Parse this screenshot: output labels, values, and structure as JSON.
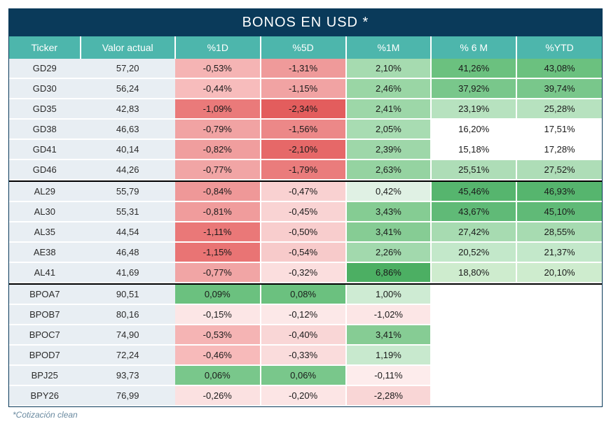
{
  "title": "BONOS EN USD *",
  "footnote": "*Cotización clean",
  "columns": [
    "Ticker",
    "Valor actual",
    "%1D",
    "%5D",
    "%1M",
    "% 6 M",
    "%YTD"
  ],
  "col_widths": [
    "12%",
    "16%",
    "14.4%",
    "14.4%",
    "14.4%",
    "14.4%",
    "14.4%"
  ],
  "header_bg": "#4db6ac",
  "header_text": "#ffffff",
  "title_bg": "#0a3a5a",
  "title_text": "#ffffff",
  "ticker_bg": "#e8eef3",
  "cell_text": "#1a1a1a",
  "font_size_title": 20,
  "font_size_header": 14,
  "font_size_cell": 13,
  "groups": [
    {
      "rows": [
        {
          "ticker": "GD29",
          "valor": "57,20",
          "pct": [
            {
              "v": "-0,53%",
              "bg": "#f5b4b4"
            },
            {
              "v": "-1,31%",
              "bg": "#ef9a9a"
            },
            {
              "v": "2,10%",
              "bg": "#a6dbb0"
            },
            {
              "v": "41,26%",
              "bg": "#6bc17f"
            },
            {
              "v": "43,08%",
              "bg": "#6bc17f"
            }
          ]
        },
        {
          "ticker": "GD30",
          "valor": "56,24",
          "pct": [
            {
              "v": "-0,44%",
              "bg": "#f7bcbc"
            },
            {
              "v": "-1,15%",
              "bg": "#f1a3a3"
            },
            {
              "v": "2,46%",
              "bg": "#9ad6a5"
            },
            {
              "v": "37,92%",
              "bg": "#79c78b"
            },
            {
              "v": "39,74%",
              "bg": "#79c78b"
            }
          ]
        },
        {
          "ticker": "GD35",
          "valor": "42,83",
          "pct": [
            {
              "v": "-1,09%",
              "bg": "#ea7a7a"
            },
            {
              "v": "-2,34%",
              "bg": "#e35d5d"
            },
            {
              "v": "2,41%",
              "bg": "#9dd7a8"
            },
            {
              "v": "23,19%",
              "bg": "#b7e2bf"
            },
            {
              "v": "25,28%",
              "bg": "#b7e2bf"
            }
          ]
        },
        {
          "ticker": "GD38",
          "valor": "46,63",
          "pct": [
            {
              "v": "-0,79%",
              "bg": "#f1a3a3"
            },
            {
              "v": "-1,56%",
              "bg": "#ec8888"
            },
            {
              "v": "2,05%",
              "bg": "#a8dcb2"
            },
            {
              "v": "16,20%",
              "bg": "#ffffff"
            },
            {
              "v": "17,51%",
              "bg": "#ffffff"
            }
          ]
        },
        {
          "ticker": "GD41",
          "valor": "40,14",
          "pct": [
            {
              "v": "-0,82%",
              "bg": "#f09e9e"
            },
            {
              "v": "-2,10%",
              "bg": "#e66868"
            },
            {
              "v": "2,39%",
              "bg": "#9ed7a9"
            },
            {
              "v": "15,18%",
              "bg": "#ffffff"
            },
            {
              "v": "17,28%",
              "bg": "#ffffff"
            }
          ]
        },
        {
          "ticker": "GD46",
          "valor": "44,26",
          "pct": [
            {
              "v": "-0,77%",
              "bg": "#f1a5a5"
            },
            {
              "v": "-1,79%",
              "bg": "#ea7c7c"
            },
            {
              "v": "2,63%",
              "bg": "#95d3a1"
            },
            {
              "v": "25,51%",
              "bg": "#aeddb7"
            },
            {
              "v": "27,52%",
              "bg": "#aeddb7"
            }
          ]
        }
      ]
    },
    {
      "rows": [
        {
          "ticker": "AL29",
          "valor": "55,79",
          "pct": [
            {
              "v": "-0,84%",
              "bg": "#ef9898"
            },
            {
              "v": "-0,47%",
              "bg": "#f9d1d1"
            },
            {
              "v": "0,42%",
              "bg": "#e0f1e4"
            },
            {
              "v": "45,46%",
              "bg": "#56b56e"
            },
            {
              "v": "46,93%",
              "bg": "#56b56e"
            }
          ]
        },
        {
          "ticker": "AL30",
          "valor": "55,31",
          "pct": [
            {
              "v": "-0,81%",
              "bg": "#f09c9c"
            },
            {
              "v": "-0,45%",
              "bg": "#f9d3d3"
            },
            {
              "v": "3,43%",
              "bg": "#85cc93"
            },
            {
              "v": "43,67%",
              "bg": "#60ba77"
            },
            {
              "v": "45,10%",
              "bg": "#60ba77"
            }
          ]
        },
        {
          "ticker": "AL35",
          "valor": "44,54",
          "pct": [
            {
              "v": "-1,11%",
              "bg": "#ea7878"
            },
            {
              "v": "-0,50%",
              "bg": "#f8cdcd"
            },
            {
              "v": "3,41%",
              "bg": "#86cc94"
            },
            {
              "v": "27,42%",
              "bg": "#a7dbb1"
            },
            {
              "v": "28,55%",
              "bg": "#a7dbb1"
            }
          ]
        },
        {
          "ticker": "AE38",
          "valor": "46,48",
          "pct": [
            {
              "v": "-1,15%",
              "bg": "#e97474"
            },
            {
              "v": "-0,54%",
              "bg": "#f7caca"
            },
            {
              "v": "2,26%",
              "bg": "#a2d9ad"
            },
            {
              "v": "20,52%",
              "bg": "#c3e8ca"
            },
            {
              "v": "21,37%",
              "bg": "#c3e8ca"
            }
          ]
        },
        {
          "ticker": "AL41",
          "valor": "41,69",
          "pct": [
            {
              "v": "-0,77%",
              "bg": "#f1a5a5"
            },
            {
              "v": "-0,32%",
              "bg": "#fbdede"
            },
            {
              "v": "6,86%",
              "bg": "#4caf63"
            },
            {
              "v": "18,80%",
              "bg": "#ceecce"
            },
            {
              "v": "20,10%",
              "bg": "#ceecce"
            }
          ]
        }
      ]
    },
    {
      "rows": [
        {
          "ticker": "BPOA7",
          "valor": "90,51",
          "pct": [
            {
              "v": "0,09%",
              "bg": "#6bc17f"
            },
            {
              "v": "0,08%",
              "bg": "#6bc17f"
            },
            {
              "v": "1,00%",
              "bg": "#ceebd3"
            },
            {
              "v": "",
              "bg": "#ffffff"
            },
            {
              "v": "",
              "bg": "#ffffff"
            }
          ]
        },
        {
          "ticker": "BPOB7",
          "valor": "80,16",
          "pct": [
            {
              "v": "-0,15%",
              "bg": "#fce6e6"
            },
            {
              "v": "-0,12%",
              "bg": "#fce8e8"
            },
            {
              "v": "-1,02%",
              "bg": "#fce6e6"
            },
            {
              "v": "",
              "bg": "#ffffff"
            },
            {
              "v": "",
              "bg": "#ffffff"
            }
          ]
        },
        {
          "ticker": "BPOC7",
          "valor": "74,90",
          "pct": [
            {
              "v": "-0,53%",
              "bg": "#f5b4b4"
            },
            {
              "v": "-0,40%",
              "bg": "#f9d6d6"
            },
            {
              "v": "3,41%",
              "bg": "#86cc94"
            },
            {
              "v": "",
              "bg": "#ffffff"
            },
            {
              "v": "",
              "bg": "#ffffff"
            }
          ]
        },
        {
          "ticker": "BPOD7",
          "valor": "72,24",
          "pct": [
            {
              "v": "-0,46%",
              "bg": "#f7baba"
            },
            {
              "v": "-0,33%",
              "bg": "#fadcdc"
            },
            {
              "v": "1,19%",
              "bg": "#c8e9ce"
            },
            {
              "v": "",
              "bg": "#ffffff"
            },
            {
              "v": "",
              "bg": "#ffffff"
            }
          ]
        },
        {
          "ticker": "BPJ25",
          "valor": "93,73",
          "pct": [
            {
              "v": "0,06%",
              "bg": "#79c78b"
            },
            {
              "v": "0,06%",
              "bg": "#79c78b"
            },
            {
              "v": "-0,11%",
              "bg": "#fdecec"
            },
            {
              "v": "",
              "bg": "#ffffff"
            },
            {
              "v": "",
              "bg": "#ffffff"
            }
          ]
        },
        {
          "ticker": "BPY26",
          "valor": "76,99",
          "pct": [
            {
              "v": "-0,26%",
              "bg": "#fbe1e1"
            },
            {
              "v": "-0,20%",
              "bg": "#fce5e5"
            },
            {
              "v": "-2,28%",
              "bg": "#f9d6d6"
            },
            {
              "v": "",
              "bg": "#ffffff"
            },
            {
              "v": "",
              "bg": "#ffffff"
            }
          ]
        }
      ]
    }
  ]
}
